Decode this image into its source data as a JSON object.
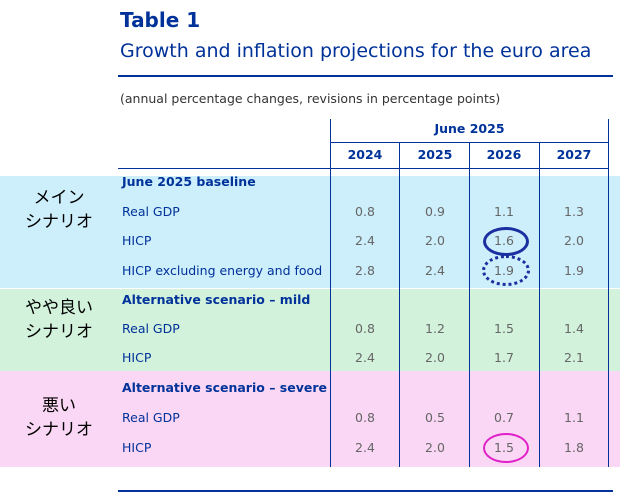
{
  "table": {
    "title": "Table 1",
    "subtitle": "Growth and inflation projections for the euro area",
    "units": "(annual percentage changes, revisions in percentage points)",
    "group_header": "June 2025",
    "years": [
      "2024",
      "2025",
      "2026",
      "2027"
    ],
    "sections": [
      {
        "title": "June 2025 baseline",
        "annotation": [
          "メイン",
          "シナリオ"
        ],
        "rows": [
          {
            "label": "Real GDP",
            "values": [
              "0.8",
              "0.9",
              "1.1",
              "1.3"
            ]
          },
          {
            "label": "HICP",
            "values": [
              "2.4",
              "2.0",
              "1.6",
              "2.0"
            ]
          },
          {
            "label": "HICP excluding energy and food",
            "values": [
              "2.8",
              "2.4",
              "1.9",
              "1.9"
            ]
          }
        ]
      },
      {
        "title": "Alternative scenario – mild",
        "annotation": [
          "やや良い",
          "シナリオ"
        ],
        "rows": [
          {
            "label": "Real GDP",
            "values": [
              "0.8",
              "1.2",
              "1.5",
              "1.4"
            ]
          },
          {
            "label": "HICP",
            "values": [
              "2.4",
              "2.0",
              "1.7",
              "2.1"
            ]
          }
        ]
      },
      {
        "title": "Alternative scenario – severe",
        "annotation": [
          "悪い",
          "シナリオ"
        ],
        "rows": [
          {
            "label": "Real GDP",
            "values": [
              "0.8",
              "0.5",
              "0.7",
              "1.1"
            ]
          },
          {
            "label": "HICP",
            "values": [
              "2.4",
              "2.0",
              "1.5",
              "1.8"
            ]
          }
        ]
      }
    ]
  },
  "colors": {
    "ecb_blue": "#003299",
    "baseline_band": "#cdeefb",
    "mild_band": "#d3f2dc",
    "severe_band": "#fad7f5",
    "highlight_solid": "#1a2fa0",
    "highlight_dotted": "#1a2fa0",
    "highlight_magenta": "#e020c8"
  }
}
